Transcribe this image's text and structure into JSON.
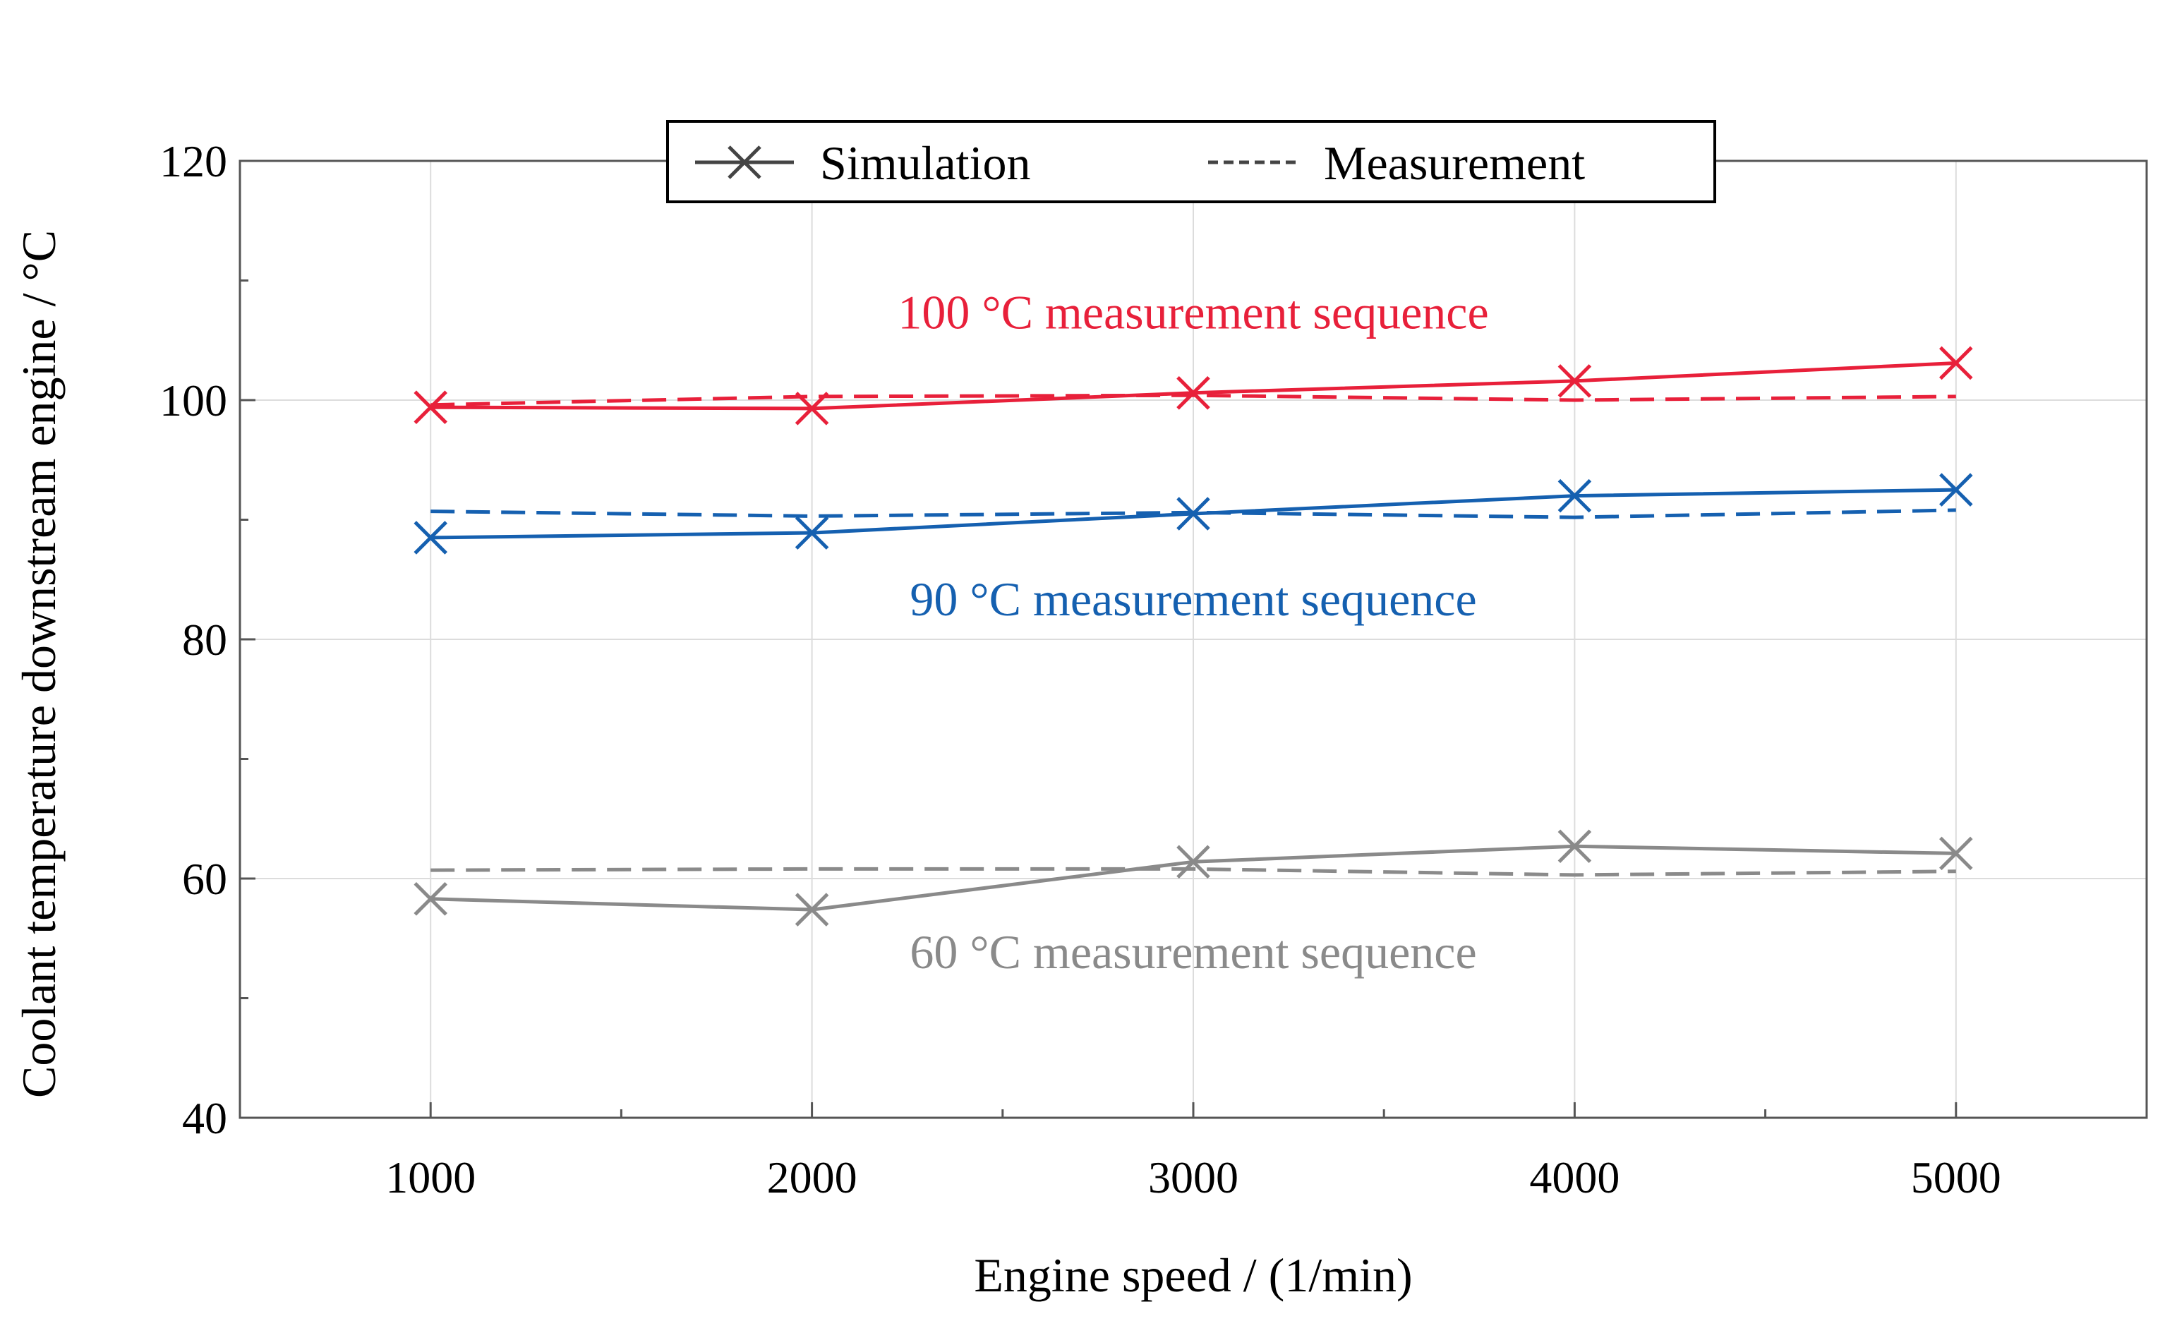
{
  "chart_data": {
    "type": "line",
    "title": "",
    "xlabel": "Engine speed / (1/min)",
    "ylabel": "Coolant temperature downstream engine / °C",
    "xlim": [
      500,
      5500
    ],
    "ylim": [
      40,
      120
    ],
    "x_ticks": [
      1000,
      2000,
      3000,
      4000,
      5000
    ],
    "y_ticks": [
      40,
      60,
      80,
      100,
      120
    ],
    "grid": true,
    "legend": {
      "position": "top-center",
      "entries": [
        {
          "label": "Simulation",
          "style": "solid-with-x-markers"
        },
        {
          "label": "Measurement",
          "style": "dashed"
        }
      ]
    },
    "annotations": [
      {
        "text": "100 °C measurement sequence",
        "color": "#e8203a",
        "x": 3000,
        "y": 106
      },
      {
        "text": "90 °C measurement sequence",
        "color": "#1560b0",
        "x": 3000,
        "y": 82
      },
      {
        "text": "60 °C measurement sequence",
        "color": "#8a8a8a",
        "x": 3000,
        "y": 52.5
      }
    ],
    "series": [
      {
        "name": "100 °C Simulation",
        "group": "100 °C",
        "kind": "simulation",
        "color": "#e8203a",
        "x": [
          1000,
          2000,
          3000,
          4000,
          5000
        ],
        "values": [
          99.4,
          99.3,
          100.6,
          101.6,
          103.1
        ]
      },
      {
        "name": "100 °C Measurement",
        "group": "100 °C",
        "kind": "measurement",
        "color": "#e8203a",
        "x": [
          1000,
          2000,
          3000,
          4000,
          5000
        ],
        "values": [
          99.6,
          100.3,
          100.4,
          100.0,
          100.3
        ]
      },
      {
        "name": "90 °C Simulation",
        "group": "90 °C",
        "kind": "simulation",
        "color": "#1560b0",
        "x": [
          1000,
          2000,
          3000,
          4000,
          5000
        ],
        "values": [
          88.5,
          88.9,
          90.5,
          92.0,
          92.5
        ]
      },
      {
        "name": "90 °C Measurement",
        "group": "90 °C",
        "kind": "measurement",
        "color": "#1560b0",
        "x": [
          1000,
          2000,
          3000,
          4000,
          5000
        ],
        "values": [
          90.7,
          90.3,
          90.6,
          90.2,
          90.8
        ]
      },
      {
        "name": "60 °C Simulation",
        "group": "60 °C",
        "kind": "simulation",
        "color": "#8a8a8a",
        "x": [
          1000,
          2000,
          3000,
          4000,
          5000
        ],
        "values": [
          58.3,
          57.4,
          61.4,
          62.7,
          62.1
        ]
      },
      {
        "name": "60 °C Measurement",
        "group": "60 °C",
        "kind": "measurement",
        "color": "#8a8a8a",
        "x": [
          1000,
          2000,
          3000,
          4000,
          5000
        ],
        "values": [
          60.7,
          60.8,
          60.8,
          60.3,
          60.6
        ]
      }
    ]
  }
}
